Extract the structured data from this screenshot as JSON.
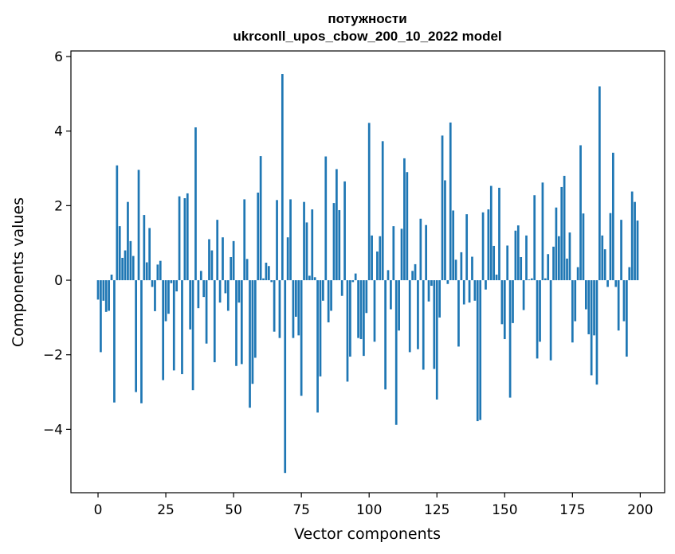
{
  "chart_data": {
    "type": "bar",
    "title_line1": "потужности",
    "title_line2": "ukrconll_upos_cbow_200_10_2022 model",
    "xlabel": "Vector components",
    "ylabel": "Components values",
    "xlim": [
      -10,
      209
    ],
    "ylim": [
      -5.7,
      6.15
    ],
    "xticks": [
      0,
      25,
      50,
      75,
      100,
      125,
      150,
      175,
      200
    ],
    "yticks": [
      -4,
      -2,
      0,
      2,
      4,
      6
    ],
    "ytick_labels": [
      "−4",
      "−2",
      "0",
      "2",
      "4",
      "6"
    ],
    "bar_color": "#1f77b4",
    "grid": false,
    "values": [
      -0.52,
      -1.93,
      -0.55,
      -0.85,
      -0.82,
      0.15,
      -3.28,
      3.08,
      1.45,
      0.6,
      0.8,
      2.1,
      1.05,
      0.65,
      -3.0,
      2.96,
      -3.3,
      1.75,
      0.48,
      1.4,
      -0.18,
      -0.83,
      0.42,
      0.52,
      -2.68,
      -1.1,
      -0.9,
      -0.08,
      -2.42,
      -0.3,
      2.25,
      -2.52,
      2.2,
      2.33,
      -1.32,
      -2.95,
      4.1,
      -0.75,
      0.25,
      -0.45,
      -1.7,
      1.1,
      0.8,
      -2.2,
      1.62,
      -0.6,
      1.15,
      -0.35,
      -0.82,
      0.62,
      1.05,
      -2.3,
      -0.6,
      -2.25,
      2.17,
      0.57,
      -3.42,
      -2.78,
      -2.08,
      2.35,
      3.33,
      0.05,
      0.47,
      0.38,
      -0.05,
      -1.38,
      2.15,
      -1.55,
      5.53,
      -5.17,
      1.15,
      2.17,
      -1.55,
      -0.98,
      -1.48,
      -3.1,
      2.1,
      1.55,
      0.12,
      1.9,
      0.08,
      -3.55,
      -2.58,
      -0.55,
      3.32,
      -1.13,
      -0.82,
      2.07,
      2.98,
      1.88,
      -0.42,
      2.65,
      -2.72,
      -2.05,
      -0.05,
      0.18,
      -1.55,
      -1.58,
      -2.03,
      -0.88,
      4.22,
      1.2,
      -1.65,
      0.77,
      1.18,
      3.73,
      -2.93,
      0.27,
      -0.78,
      1.45,
      -3.88,
      -1.35,
      1.38,
      3.27,
      2.9,
      -1.93,
      0.25,
      0.43,
      -1.85,
      1.65,
      -2.4,
      1.48,
      -0.57,
      -0.15,
      -2.38,
      -3.2,
      -1.0,
      3.88,
      2.68,
      -0.1,
      4.23,
      1.87,
      0.55,
      -1.78,
      0.75,
      -0.65,
      1.77,
      -0.6,
      0.63,
      -0.55,
      -3.78,
      -3.75,
      1.82,
      -0.25,
      1.9,
      2.53,
      0.92,
      0.15,
      2.48,
      -1.18,
      -1.58,
      0.93,
      -3.15,
      -1.15,
      1.33,
      1.47,
      0.62,
      -0.8,
      1.2,
      0.02,
      0.05,
      2.28,
      -2.1,
      -1.65,
      2.62,
      0.05,
      0.7,
      -2.15,
      0.9,
      1.95,
      1.18,
      2.5,
      2.8,
      0.58,
      1.28,
      -1.67,
      -1.1,
      0.35,
      3.62,
      1.79,
      -0.78,
      -1.45,
      -2.55,
      -1.48,
      -2.8,
      5.2,
      1.2,
      0.83,
      -0.18,
      1.8,
      3.42,
      -0.18,
      -1.35,
      1.62,
      -1.1,
      -2.05,
      0.35,
      2.38,
      2.1,
      1.6
    ]
  }
}
